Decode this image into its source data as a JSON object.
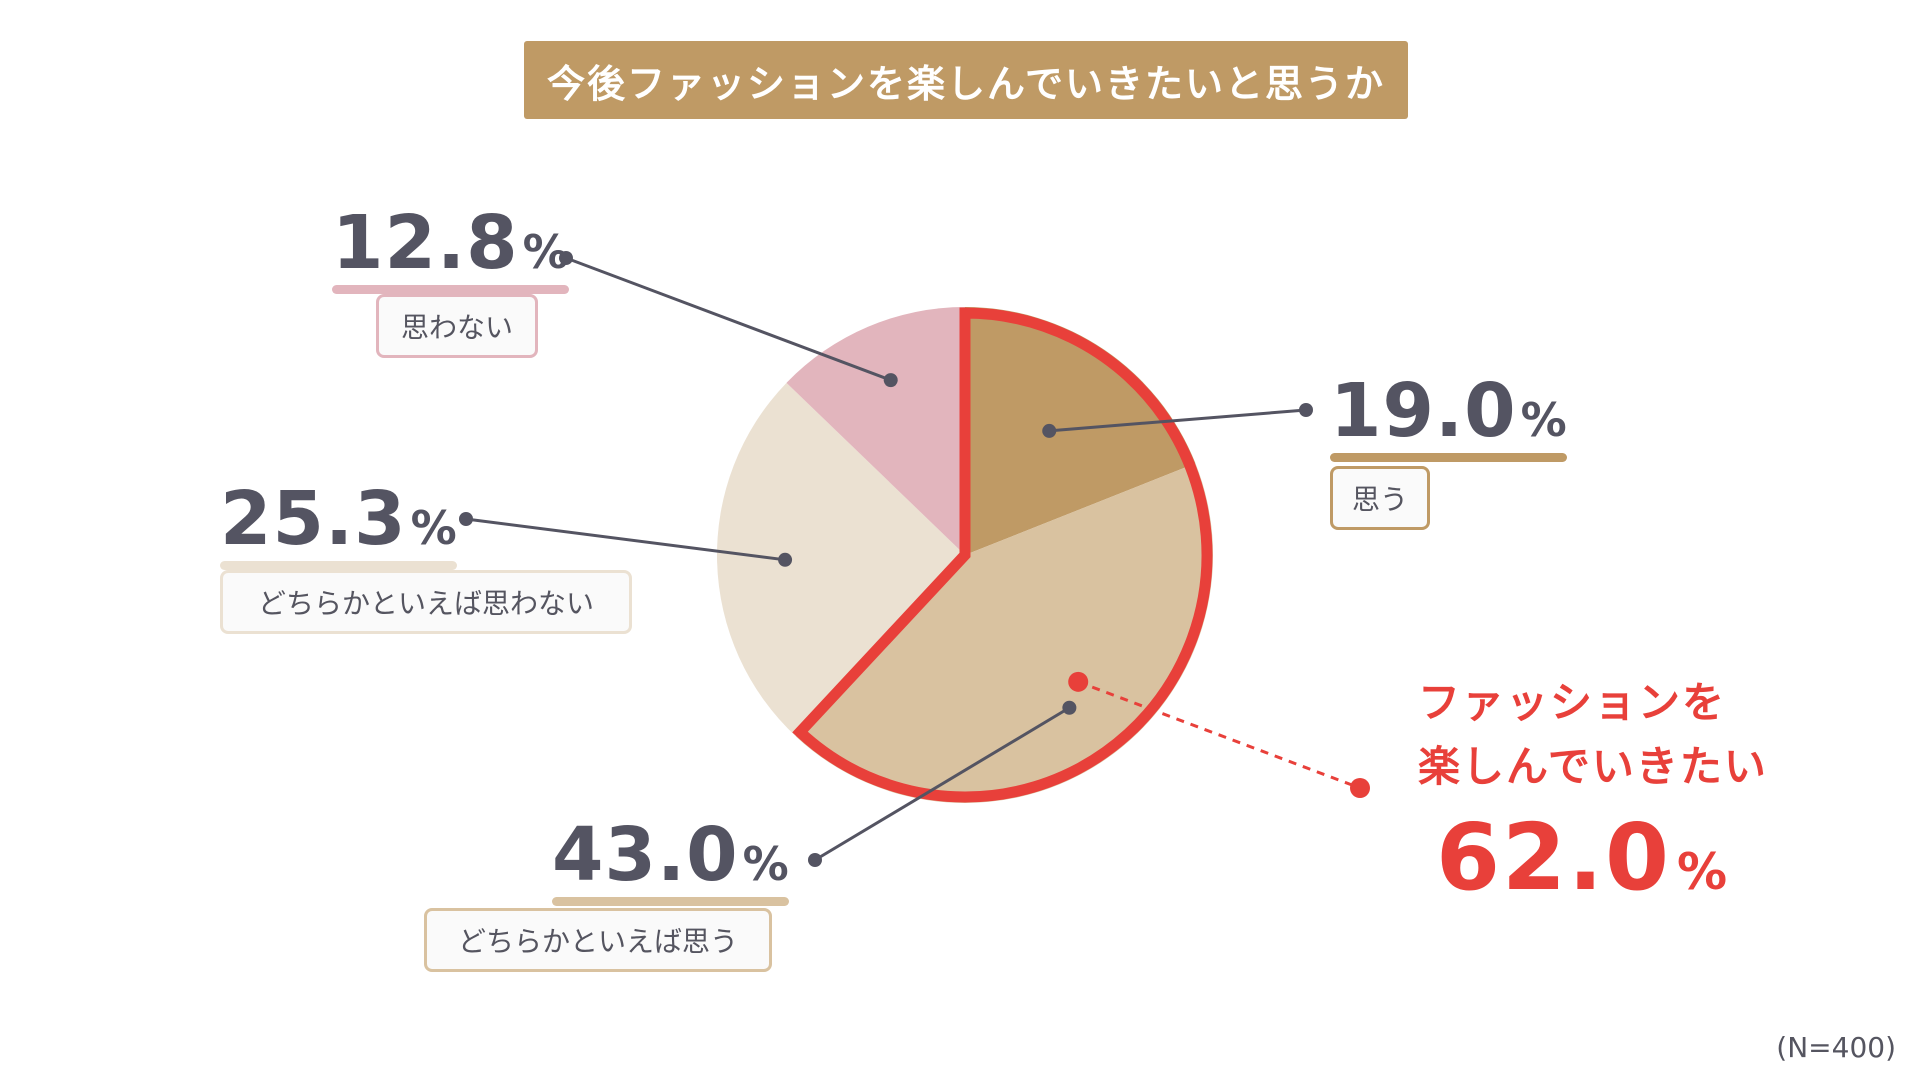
{
  "chart_data": {
    "type": "pie",
    "title": "今後ファッションを楽しんでいきたいと思うか",
    "slices": [
      {
        "label": "思う",
        "value": 19.0,
        "color": "#bf9a65"
      },
      {
        "label": "どちらかといえば思う",
        "value": 43.0,
        "color": "#d9c2a0"
      },
      {
        "label": "どちらかといえば思わない",
        "value": 25.3,
        "color": "#ebe1d2"
      },
      {
        "label": "思わない",
        "value": 12.8,
        "color": "#e2b5bd"
      }
    ],
    "highlight": {
      "line1": "ファッションを",
      "line2": "楽しんでいきたい",
      "value": "62.0",
      "color": "#e8403a"
    },
    "percent_sign": "%",
    "note": "(N=400)"
  },
  "labels": {
    "s0_value": "19.0",
    "s1_value": "43.0",
    "s2_value": "25.3",
    "s3_value": "12.8"
  }
}
